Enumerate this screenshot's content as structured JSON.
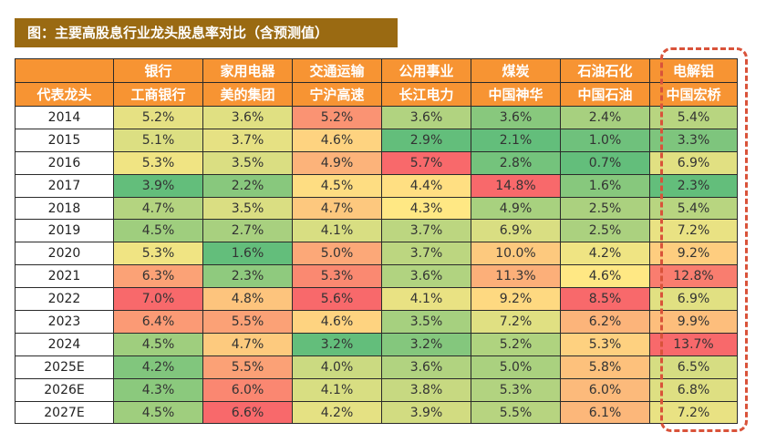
{
  "title": "图：主要高股息行业龙头股息率对比（含预测值）",
  "table": {
    "corner_label": "代表龙头",
    "industries": [
      "银行",
      "家用电器",
      "交通运输",
      "公用事业",
      "煤炭",
      "石油石化",
      "电解铝"
    ],
    "companies": [
      "工商银行",
      "美的集团",
      "宁沪高速",
      "长江电力",
      "中国神华",
      "中国石油",
      "中国宏桥"
    ],
    "rows": [
      {
        "year": "2014",
        "values": [
          "5.2%",
          "3.6%",
          "5.2%",
          "3.6%",
          "3.6%",
          "2.4%",
          "5.4%"
        ]
      },
      {
        "year": "2015",
        "values": [
          "5.1%",
          "3.7%",
          "4.6%",
          "2.9%",
          "2.1%",
          "1.0%",
          "3.3%"
        ]
      },
      {
        "year": "2016",
        "values": [
          "5.3%",
          "3.5%",
          "4.9%",
          "5.7%",
          "2.8%",
          "0.7%",
          "6.9%"
        ]
      },
      {
        "year": "2017",
        "values": [
          "3.9%",
          "2.2%",
          "4.5%",
          "4.4%",
          "14.8%",
          "1.6%",
          "2.3%"
        ]
      },
      {
        "year": "2018",
        "values": [
          "4.7%",
          "3.5%",
          "4.7%",
          "4.3%",
          "4.9%",
          "2.5%",
          "5.4%"
        ]
      },
      {
        "year": "2019",
        "values": [
          "4.5%",
          "2.7%",
          "4.1%",
          "3.7%",
          "6.9%",
          "2.5%",
          "7.2%"
        ]
      },
      {
        "year": "2020",
        "values": [
          "5.3%",
          "1.6%",
          "5.0%",
          "3.7%",
          "10.0%",
          "4.2%",
          "9.2%"
        ]
      },
      {
        "year": "2021",
        "values": [
          "6.3%",
          "2.3%",
          "5.3%",
          "3.6%",
          "11.3%",
          "4.6%",
          "12.8%"
        ]
      },
      {
        "year": "2022",
        "values": [
          "7.0%",
          "4.8%",
          "5.6%",
          "4.1%",
          "9.2%",
          "8.5%",
          "6.9%"
        ]
      },
      {
        "year": "2023",
        "values": [
          "6.4%",
          "5.5%",
          "4.6%",
          "3.5%",
          "7.2%",
          "6.2%",
          "9.9%"
        ]
      },
      {
        "year": "2024",
        "values": [
          "4.5%",
          "4.7%",
          "3.2%",
          "3.2%",
          "5.2%",
          "5.3%",
          "13.7%"
        ]
      },
      {
        "year": "2025E",
        "values": [
          "4.2%",
          "5.5%",
          "4.0%",
          "3.6%",
          "5.0%",
          "5.8%",
          "6.5%"
        ]
      },
      {
        "year": "2026E",
        "values": [
          "4.3%",
          "6.0%",
          "4.1%",
          "3.8%",
          "5.3%",
          "6.0%",
          "6.8%"
        ]
      },
      {
        "year": "2027E",
        "values": [
          "4.5%",
          "6.6%",
          "4.2%",
          "3.9%",
          "5.5%",
          "6.1%",
          "7.2%"
        ]
      }
    ]
  },
  "chart_data": {
    "type": "heatmap",
    "title": "图：主要高股息行业龙头股息率对比（含预测值）",
    "row_label": "代表龙头",
    "columns": [
      "银行 工商银行",
      "家用电器 美的集团",
      "交通运输 宁沪高速",
      "公用事业 长江电力",
      "煤炭 中国神华",
      "石油石化 中国石油",
      "电解铝 中国宏桥"
    ],
    "rows": [
      "2014",
      "2015",
      "2016",
      "2017",
      "2018",
      "2019",
      "2020",
      "2021",
      "2022",
      "2023",
      "2024",
      "2025E",
      "2026E",
      "2027E"
    ],
    "values": [
      [
        5.2,
        3.6,
        5.2,
        3.6,
        3.6,
        2.4,
        5.4
      ],
      [
        5.1,
        3.7,
        4.6,
        2.9,
        2.1,
        1.0,
        3.3
      ],
      [
        5.3,
        3.5,
        4.9,
        5.7,
        2.8,
        0.7,
        6.9
      ],
      [
        3.9,
        2.2,
        4.5,
        4.4,
        14.8,
        1.6,
        2.3
      ],
      [
        4.7,
        3.5,
        4.7,
        4.3,
        4.9,
        2.5,
        5.4
      ],
      [
        4.5,
        2.7,
        4.1,
        3.7,
        6.9,
        2.5,
        7.2
      ],
      [
        5.3,
        1.6,
        5.0,
        3.7,
        10.0,
        4.2,
        9.2
      ],
      [
        6.3,
        2.3,
        5.3,
        3.6,
        11.3,
        4.6,
        12.8
      ],
      [
        7.0,
        4.8,
        5.6,
        4.1,
        9.2,
        8.5,
        6.9
      ],
      [
        6.4,
        5.5,
        4.6,
        3.5,
        7.2,
        6.2,
        9.9
      ],
      [
        4.5,
        4.7,
        3.2,
        3.2,
        5.2,
        5.3,
        13.7
      ],
      [
        4.2,
        5.5,
        4.0,
        3.6,
        5.0,
        5.8,
        6.5
      ],
      [
        4.3,
        6.0,
        4.1,
        3.8,
        5.3,
        6.0,
        6.8
      ],
      [
        4.5,
        6.6,
        4.2,
        3.9,
        5.5,
        6.1,
        7.2
      ]
    ],
    "unit": "%",
    "color_scale": "per-column: green (low) → yellow (mid) → red (high)",
    "highlighted_column": "电解铝 中国宏桥",
    "colors": {
      "header": "#f79433",
      "title_bar": "#9a6a12",
      "highlight_border": "#d9533a",
      "low": "#63be7b",
      "mid": "#ffe884",
      "high": "#f8696b"
    }
  }
}
